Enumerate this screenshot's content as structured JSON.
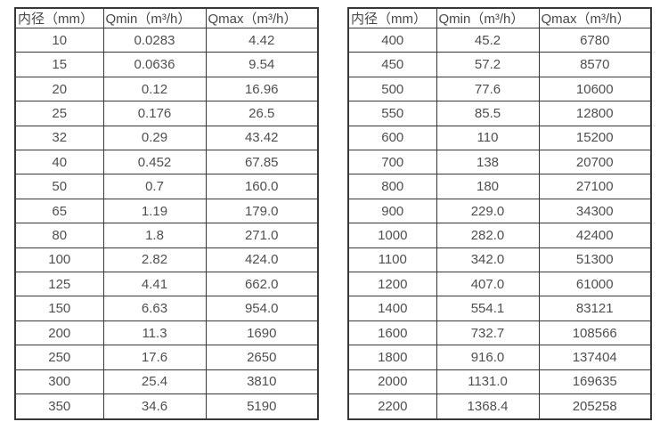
{
  "columns": [
    "内径（mm）",
    "Qmin（m³/h）",
    "Qmax（m³/h）"
  ],
  "tables": [
    {
      "name": "small-diameters",
      "rows": [
        [
          "10",
          "0.0283",
          "4.42"
        ],
        [
          "15",
          "0.0636",
          "9.54"
        ],
        [
          "20",
          "0.12",
          "16.96"
        ],
        [
          "25",
          "0.176",
          "26.5"
        ],
        [
          "32",
          "0.29",
          "43.42"
        ],
        [
          "40",
          "0.452",
          "67.85"
        ],
        [
          "50",
          "0.7",
          "160.0"
        ],
        [
          "65",
          "1.19",
          "179.0"
        ],
        [
          "80",
          "1.8",
          "271.0"
        ],
        [
          "100",
          "2.82",
          "424.0"
        ],
        [
          "125",
          "4.41",
          "662.0"
        ],
        [
          "150",
          "6.63",
          "954.0"
        ],
        [
          "200",
          "11.3",
          "1690"
        ],
        [
          "250",
          "17.6",
          "2650"
        ],
        [
          "300",
          "25.4",
          "3810"
        ],
        [
          "350",
          "34.6",
          "5190"
        ]
      ]
    },
    {
      "name": "large-diameters",
      "rows": [
        [
          "400",
          "45.2",
          "6780"
        ],
        [
          "450",
          "57.2",
          "8570"
        ],
        [
          "500",
          "77.6",
          "10600"
        ],
        [
          "550",
          "85.5",
          "12800"
        ],
        [
          "600",
          "110",
          "15200"
        ],
        [
          "700",
          "138",
          "20700"
        ],
        [
          "800",
          "180",
          "27100"
        ],
        [
          "900",
          "229.0",
          "34300"
        ],
        [
          "1000",
          "282.0",
          "42400"
        ],
        [
          "1100",
          "342.0",
          "51300"
        ],
        [
          "1200",
          "407.0",
          "61000"
        ],
        [
          "1400",
          "554.1",
          "83121"
        ],
        [
          "1600",
          "732.7",
          "108566"
        ],
        [
          "1800",
          "916.0",
          "137404"
        ],
        [
          "2000",
          "1131.0",
          "169635"
        ],
        [
          "2200",
          "1368.4",
          "205258"
        ]
      ]
    }
  ],
  "colors": {
    "border": "#383838",
    "text": "#4f4f4f",
    "background": "#ffffff"
  }
}
